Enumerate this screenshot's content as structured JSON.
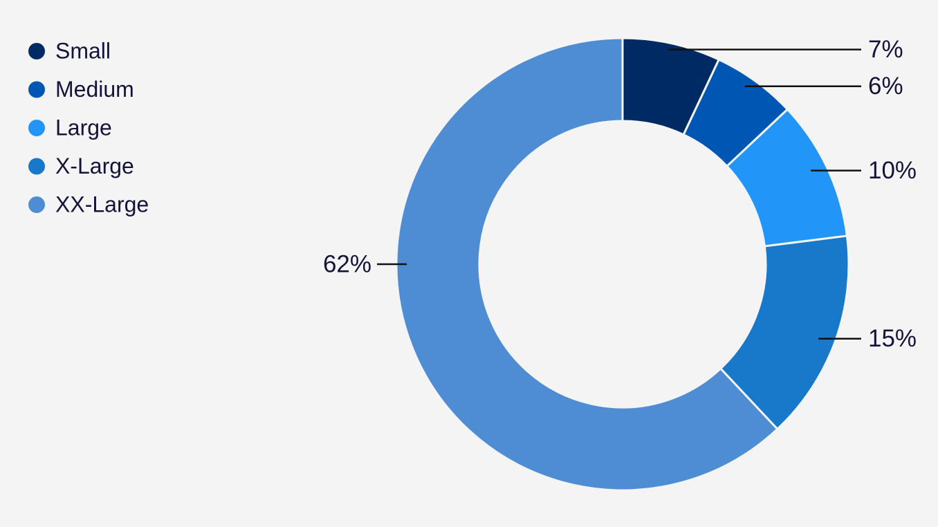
{
  "chart_data": {
    "type": "pie",
    "categories": [
      "Small",
      "Medium",
      "Large",
      "X-Large",
      "XX-Large"
    ],
    "values": [
      7,
      6,
      10,
      15,
      62
    ],
    "value_labels": [
      "7%",
      "6%",
      "10%",
      "15%",
      "62%"
    ],
    "colors": [
      "#002a64",
      "#0057b3",
      "#2196f8",
      "#1878c9",
      "#4e8dd4"
    ],
    "legend": "top-left"
  }
}
